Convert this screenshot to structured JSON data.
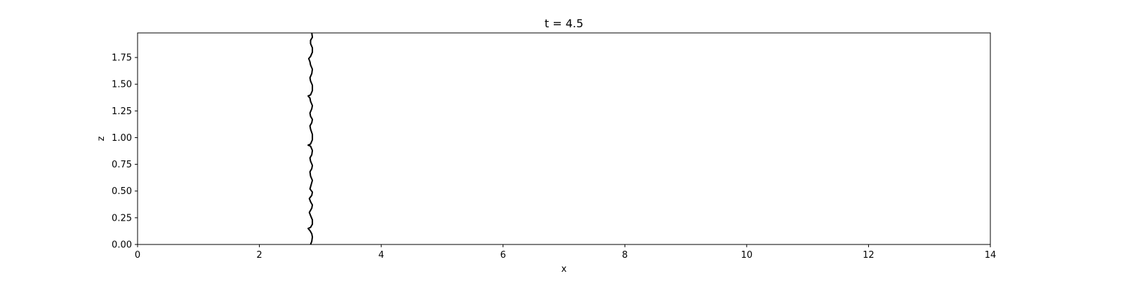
{
  "chart_data": {
    "type": "line",
    "title": "t = 4.5",
    "xlabel": "x",
    "ylabel": "z",
    "xlim": [
      0,
      14
    ],
    "ylim": [
      0,
      1.98
    ],
    "grid": false,
    "x_ticks": [
      0,
      2,
      4,
      6,
      8,
      10,
      12,
      14
    ],
    "x_tick_labels": [
      "0",
      "2",
      "4",
      "6",
      "8",
      "10",
      "12",
      "14"
    ],
    "y_ticks": [
      0,
      0.25,
      0.5,
      0.75,
      1.0,
      1.25,
      1.5,
      1.75
    ],
    "y_tick_labels": [
      "0.00",
      "0.25",
      "0.50",
      "0.75",
      "1.00",
      "1.25",
      "1.50",
      "1.75"
    ],
    "line_color": "#000000",
    "series": [
      {
        "points": [
          [
            2.84,
            0.0
          ],
          [
            2.86,
            0.03
          ],
          [
            2.87,
            0.07
          ],
          [
            2.86,
            0.1
          ],
          [
            2.83,
            0.13
          ],
          [
            2.8,
            0.15
          ],
          [
            2.84,
            0.16
          ],
          [
            2.87,
            0.19
          ],
          [
            2.87,
            0.23
          ],
          [
            2.84,
            0.27
          ],
          [
            2.82,
            0.3
          ],
          [
            2.86,
            0.34
          ],
          [
            2.87,
            0.37
          ],
          [
            2.84,
            0.4
          ],
          [
            2.82,
            0.43
          ],
          [
            2.86,
            0.46
          ],
          [
            2.87,
            0.49
          ],
          [
            2.83,
            0.52
          ],
          [
            2.85,
            0.56
          ],
          [
            2.87,
            0.6
          ],
          [
            2.84,
            0.64
          ],
          [
            2.83,
            0.68
          ],
          [
            2.86,
            0.71
          ],
          [
            2.87,
            0.74
          ],
          [
            2.84,
            0.78
          ],
          [
            2.83,
            0.81
          ],
          [
            2.86,
            0.84
          ],
          [
            2.87,
            0.88
          ],
          [
            2.84,
            0.92
          ],
          [
            2.8,
            0.93
          ],
          [
            2.84,
            0.94
          ],
          [
            2.87,
            0.98
          ],
          [
            2.87,
            1.03
          ],
          [
            2.84,
            1.08
          ],
          [
            2.83,
            1.11
          ],
          [
            2.86,
            1.14
          ],
          [
            2.87,
            1.17
          ],
          [
            2.84,
            1.2
          ],
          [
            2.83,
            1.23
          ],
          [
            2.86,
            1.27
          ],
          [
            2.87,
            1.3
          ],
          [
            2.84,
            1.34
          ],
          [
            2.83,
            1.37
          ],
          [
            2.8,
            1.39
          ],
          [
            2.84,
            1.4
          ],
          [
            2.87,
            1.44
          ],
          [
            2.87,
            1.49
          ],
          [
            2.84,
            1.53
          ],
          [
            2.83,
            1.56
          ],
          [
            2.86,
            1.6
          ],
          [
            2.87,
            1.64
          ],
          [
            2.84,
            1.68
          ],
          [
            2.83,
            1.71
          ],
          [
            2.81,
            1.74
          ],
          [
            2.84,
            1.76
          ],
          [
            2.87,
            1.8
          ],
          [
            2.87,
            1.84
          ],
          [
            2.84,
            1.88
          ],
          [
            2.84,
            1.91
          ],
          [
            2.87,
            1.94
          ],
          [
            2.86,
            1.98
          ]
        ]
      }
    ]
  }
}
